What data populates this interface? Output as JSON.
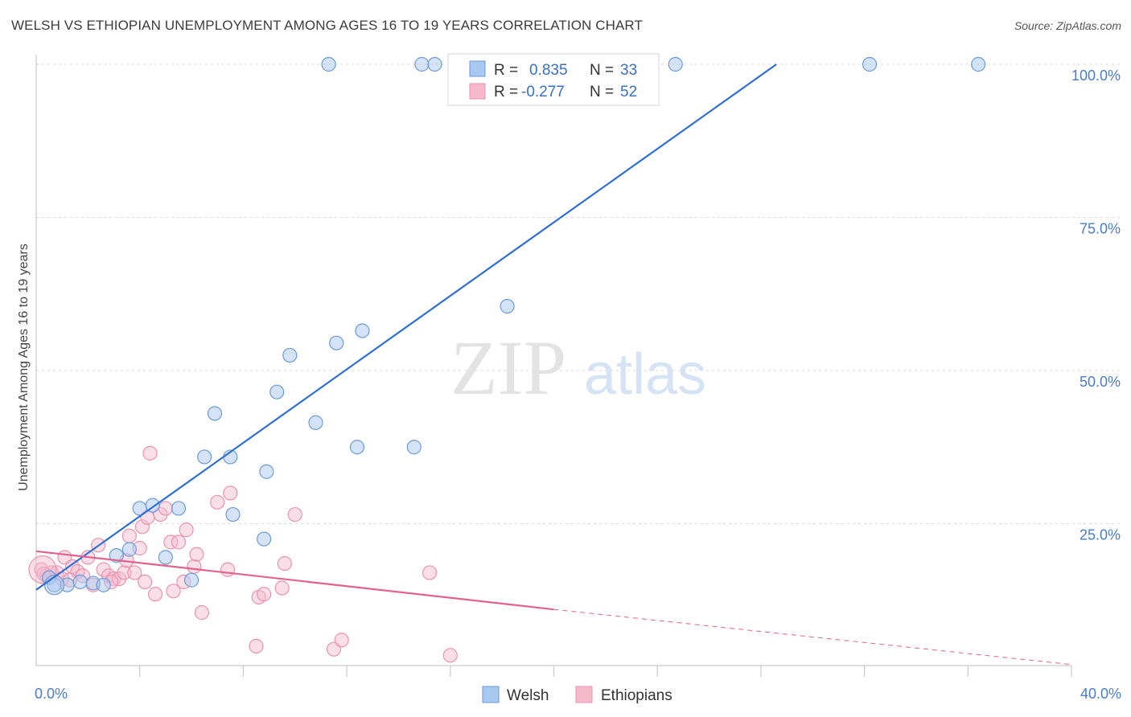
{
  "header": {
    "title": "WELSH VS ETHIOPIAN UNEMPLOYMENT AMONG AGES 16 TO 19 YEARS CORRELATION CHART",
    "source": "Source: ZipAtlas.com"
  },
  "watermark": {
    "zip": "ZIP",
    "atlas": "atlas"
  },
  "colors": {
    "welsh_fill": "#a9c8ef",
    "welsh_stroke": "#6d9ad8",
    "welsh_line": "#2f6fcf",
    "eth_fill": "#f6b8cb",
    "eth_stroke": "#e993b0",
    "eth_line": "#e0628f",
    "grid": "#d8d8d8",
    "tick": "#4a7cc9"
  },
  "legend": {
    "welsh": {
      "r_label": "R =",
      "r_value": "0.835",
      "n_label": "N =",
      "n_value": "33"
    },
    "ethiopians": {
      "r_label": "R =",
      "r_value": "-0.277",
      "n_label": "N =",
      "n_value": "52"
    }
  },
  "bottom_legend": {
    "welsh": "Welsh",
    "ethiopians": "Ethiopians"
  },
  "chart_data": {
    "type": "scatter",
    "title": "WELSH VS ETHIOPIAN UNEMPLOYMENT AMONG AGES 16 TO 19 YEARS CORRELATION CHART",
    "ylabel": "Unemployment Among Ages 16 to 19 years",
    "xlabel": "",
    "xlim": [
      0,
      40
    ],
    "ylim": [
      0,
      105
    ],
    "x_tick_labels": [
      "0.0%",
      "40.0%"
    ],
    "y_tick_labels": [
      {
        "value": 100,
        "label": "100.0%"
      },
      {
        "value": 75,
        "label": "75.0%"
      },
      {
        "value": 50,
        "label": "50.0%"
      },
      {
        "value": 25,
        "label": "25.0%"
      }
    ],
    "grid": true,
    "legend_position": "top-center",
    "series": [
      {
        "name": "Welsh",
        "r": 0.835,
        "n": 33,
        "trend": {
          "x1": 0,
          "y1": 14.2,
          "x2": 28.6,
          "y2": 100
        },
        "points": [
          {
            "x": 0.5,
            "y": 16.2
          },
          {
            "x": 0.7,
            "y": 15.0
          },
          {
            "x": 1.2,
            "y": 15.0
          },
          {
            "x": 1.7,
            "y": 15.5
          },
          {
            "x": 2.2,
            "y": 15.3
          },
          {
            "x": 2.6,
            "y": 15.0
          },
          {
            "x": 3.1,
            "y": 19.8
          },
          {
            "x": 3.6,
            "y": 20.8
          },
          {
            "x": 4.0,
            "y": 27.5
          },
          {
            "x": 4.5,
            "y": 28.0
          },
          {
            "x": 5.0,
            "y": 19.5
          },
          {
            "x": 5.5,
            "y": 27.5
          },
          {
            "x": 6.0,
            "y": 15.8
          },
          {
            "x": 6.9,
            "y": 43.0
          },
          {
            "x": 6.5,
            "y": 35.9
          },
          {
            "x": 7.5,
            "y": 35.9
          },
          {
            "x": 7.6,
            "y": 26.5
          },
          {
            "x": 8.8,
            "y": 22.5
          },
          {
            "x": 8.9,
            "y": 33.5
          },
          {
            "x": 9.3,
            "y": 46.5
          },
          {
            "x": 9.8,
            "y": 52.5
          },
          {
            "x": 10.8,
            "y": 41.5
          },
          {
            "x": 11.6,
            "y": 54.5
          },
          {
            "x": 12.4,
            "y": 37.5
          },
          {
            "x": 12.6,
            "y": 56.5
          },
          {
            "x": 14.6,
            "y": 37.5
          },
          {
            "x": 18.2,
            "y": 60.5
          },
          {
            "x": 11.3,
            "y": 100
          },
          {
            "x": 14.9,
            "y": 100
          },
          {
            "x": 15.4,
            "y": 100
          },
          {
            "x": 24.7,
            "y": 100
          },
          {
            "x": 32.2,
            "y": 100
          },
          {
            "x": 36.4,
            "y": 100
          }
        ]
      },
      {
        "name": "Ethiopians",
        "r": -0.277,
        "n": 52,
        "trend": {
          "x1": 0,
          "y1": 20.5,
          "x2": 20.0,
          "y2": 11.0,
          "dash_to_x": 40.0,
          "dash_to_y": 2.0
        },
        "points": [
          {
            "x": 0.2,
            "y": 17.5
          },
          {
            "x": 0.4,
            "y": 16.5
          },
          {
            "x": 0.6,
            "y": 17.0
          },
          {
            "x": 0.8,
            "y": 17.0
          },
          {
            "x": 1.0,
            "y": 16.0
          },
          {
            "x": 1.1,
            "y": 19.5
          },
          {
            "x": 1.4,
            "y": 18.0
          },
          {
            "x": 1.6,
            "y": 17.2
          },
          {
            "x": 1.8,
            "y": 16.5
          },
          {
            "x": 2.0,
            "y": 19.5
          },
          {
            "x": 2.2,
            "y": 15.0
          },
          {
            "x": 2.4,
            "y": 21.5
          },
          {
            "x": 2.6,
            "y": 17.5
          },
          {
            "x": 2.8,
            "y": 16.5
          },
          {
            "x": 3.0,
            "y": 16.0
          },
          {
            "x": 3.2,
            "y": 16.0
          },
          {
            "x": 3.4,
            "y": 17.0
          },
          {
            "x": 3.5,
            "y": 19.0
          },
          {
            "x": 3.6,
            "y": 23.0
          },
          {
            "x": 3.8,
            "y": 17.0
          },
          {
            "x": 4.0,
            "y": 21.0
          },
          {
            "x": 4.1,
            "y": 24.5
          },
          {
            "x": 4.2,
            "y": 15.5
          },
          {
            "x": 4.4,
            "y": 36.5
          },
          {
            "x": 4.6,
            "y": 13.5
          },
          {
            "x": 4.8,
            "y": 26.5
          },
          {
            "x": 5.0,
            "y": 27.5
          },
          {
            "x": 5.2,
            "y": 22.0
          },
          {
            "x": 5.3,
            "y": 14.0
          },
          {
            "x": 5.5,
            "y": 22.0
          },
          {
            "x": 5.7,
            "y": 15.5
          },
          {
            "x": 5.8,
            "y": 24.0
          },
          {
            "x": 6.1,
            "y": 18.0
          },
          {
            "x": 6.2,
            "y": 20.0
          },
          {
            "x": 6.4,
            "y": 10.5
          },
          {
            "x": 7.0,
            "y": 28.5
          },
          {
            "x": 7.4,
            "y": 17.5
          },
          {
            "x": 7.5,
            "y": 30.0
          },
          {
            "x": 8.5,
            "y": 5.0
          },
          {
            "x": 8.6,
            "y": 13.0
          },
          {
            "x": 8.8,
            "y": 13.5
          },
          {
            "x": 9.5,
            "y": 14.5
          },
          {
            "x": 9.6,
            "y": 18.5
          },
          {
            "x": 10.0,
            "y": 26.5
          },
          {
            "x": 11.5,
            "y": 4.5
          },
          {
            "x": 11.8,
            "y": 6.0
          },
          {
            "x": 15.2,
            "y": 17.0
          },
          {
            "x": 16.0,
            "y": 3.5
          },
          {
            "x": 0.3,
            "y": 16.8
          },
          {
            "x": 1.3,
            "y": 15.8
          },
          {
            "x": 2.9,
            "y": 15.5
          },
          {
            "x": 4.3,
            "y": 26.0
          }
        ]
      }
    ]
  }
}
